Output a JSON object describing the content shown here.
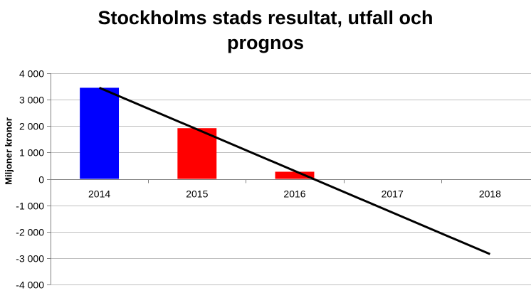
{
  "chart_data": {
    "type": "bar",
    "title_line1": "Stockholms stads resultat, utfall och",
    "title_line2": "prognos",
    "ylabel": "Miljoner kronor",
    "categories": [
      "2014",
      "2015",
      "2016",
      "2017",
      "2018"
    ],
    "series": [
      {
        "values": [
          3450,
          1920,
          270,
          0,
          0
        ],
        "colors": [
          "#0000ff",
          "#ff0000",
          "#ff0000",
          "#ff0000",
          "#ff0000"
        ]
      }
    ],
    "trendline": {
      "x_start": "2014",
      "y_start": 3450,
      "x_end": "2018",
      "y_end": -2850,
      "color": "#000000"
    },
    "ylim": [
      -4000,
      4000
    ],
    "yticks": [
      4000,
      3000,
      2000,
      1000,
      0,
      -1000,
      -2000,
      -3000,
      -4000
    ],
    "ytick_labels": [
      "4 000",
      "3 000",
      "2 000",
      "1 000",
      "0",
      "-1 000",
      "-2 000",
      "-3 000",
      "-4 000"
    ],
    "grid": true,
    "legend": "none"
  }
}
